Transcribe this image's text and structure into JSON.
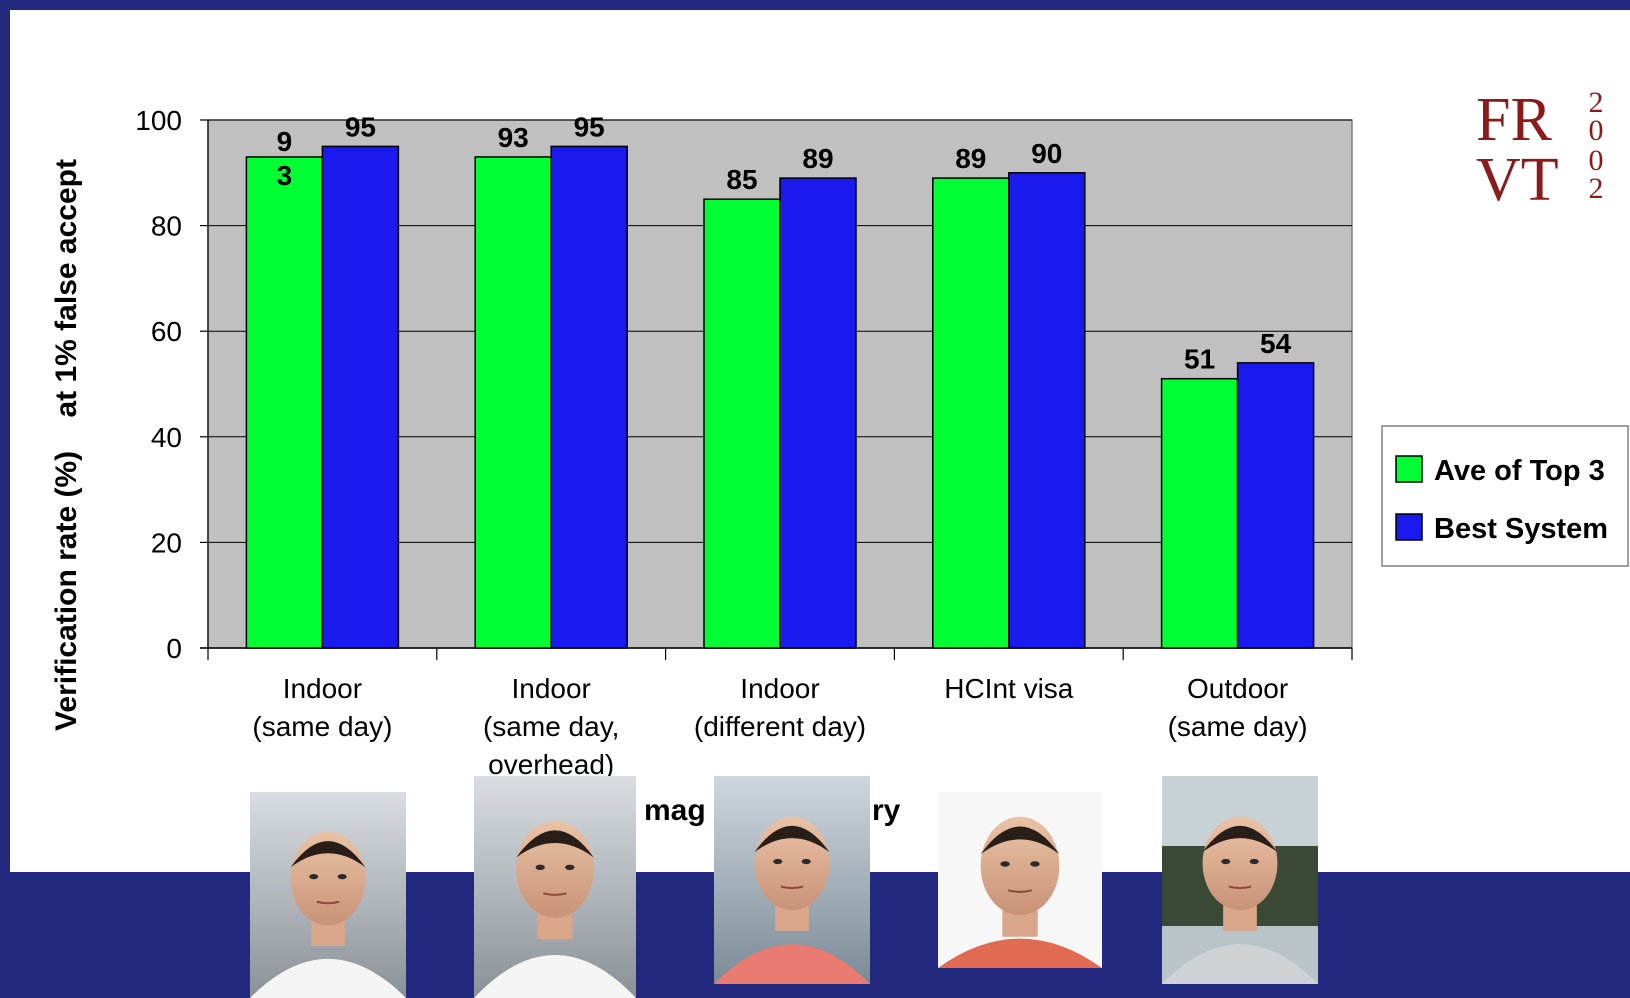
{
  "chart_data": {
    "type": "bar",
    "ylabel": "Verification rate (%)    at 1% false accept",
    "xlabel_visible_fragments": [
      "mag",
      "ry"
    ],
    "ylim": [
      0,
      100
    ],
    "yticks": [
      "0",
      "20",
      "40",
      "60",
      "80",
      "100"
    ],
    "grid": true,
    "legend_position": "right",
    "categories": [
      [
        "Indoor",
        "(same day)"
      ],
      [
        "Indoor",
        "(same day,",
        "overhead)"
      ],
      [
        "Indoor",
        "(different day)"
      ],
      [
        "HCInt visa"
      ],
      [
        "Outdoor",
        "(same day)"
      ]
    ],
    "series": [
      {
        "name": "Ave of Top 3",
        "color": "#00ff33",
        "values": [
          93,
          93,
          85,
          89,
          51
        ],
        "labels": [
          [
            "9",
            "3"
          ],
          [
            "93"
          ],
          [
            "85"
          ],
          [
            "89"
          ],
          [
            "51"
          ]
        ]
      },
      {
        "name": "Best System",
        "color": "#1a1aee",
        "values": [
          95,
          95,
          89,
          90,
          54
        ],
        "labels": [
          [
            "95"
          ],
          [
            "95"
          ],
          [
            "89"
          ],
          [
            "90"
          ],
          [
            "54"
          ]
        ]
      }
    ]
  },
  "logo": {
    "letters_top": "FR",
    "letters_bottom": "VT",
    "digits": [
      "2",
      "0",
      "0",
      "2"
    ]
  },
  "colors": {
    "plot_bg": "#c0c0c0",
    "slide_bg": "#1a1f6e",
    "logo": "#8b1a1a"
  },
  "photos": [
    {
      "icon": "face-photo-indoor-same-day"
    },
    {
      "icon": "face-photo-indoor-overhead"
    },
    {
      "icon": "face-photo-indoor-different-day"
    },
    {
      "icon": "face-photo-hcint-visa"
    },
    {
      "icon": "face-photo-outdoor"
    }
  ]
}
